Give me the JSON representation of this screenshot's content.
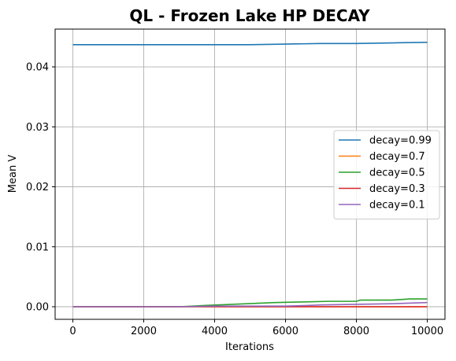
{
  "chart_data": {
    "type": "line",
    "title": "QL - Frozen Lake HP DECAY",
    "xlabel": "Iterations",
    "ylabel": "Mean V",
    "xlim": [
      -500,
      10500
    ],
    "ylim": [
      -0.0021,
      0.0463
    ],
    "xticks": [
      0,
      2000,
      4000,
      6000,
      8000,
      10000
    ],
    "yticks": [
      0.0,
      0.01,
      0.02,
      0.03,
      0.04
    ],
    "xtick_labels": [
      "0",
      "2000",
      "4000",
      "6000",
      "8000",
      "10000"
    ],
    "ytick_labels": [
      "0.00",
      "0.01",
      "0.02",
      "0.03",
      "0.04"
    ],
    "grid": true,
    "legend_position": "right",
    "series": [
      {
        "name": "decay=0.99",
        "color": "#1f77b4",
        "x": [
          0,
          1000,
          2000,
          3000,
          4000,
          5000,
          6000,
          7000,
          8000,
          9000,
          10000
        ],
        "y": [
          0.0437,
          0.0437,
          0.0437,
          0.0437,
          0.0437,
          0.0437,
          0.0438,
          0.0439,
          0.0439,
          0.044,
          0.0441
        ]
      },
      {
        "name": "decay=0.7",
        "color": "#ff7f0e",
        "x": [
          0,
          2000,
          4000,
          6000,
          8000,
          10000
        ],
        "y": [
          0.0,
          0.0,
          0.0,
          0.0,
          0.0,
          0.0
        ]
      },
      {
        "name": "decay=0.5",
        "color": "#2ca02c",
        "x": [
          0,
          3000,
          3700,
          4500,
          5700,
          6500,
          7200,
          8000,
          8100,
          9000,
          9500,
          10000
        ],
        "y": [
          0.0,
          0.0,
          0.0002,
          0.0004,
          0.0007,
          0.0008,
          0.0009,
          0.0009,
          0.0011,
          0.0011,
          0.0013,
          0.0013
        ]
      },
      {
        "name": "decay=0.3",
        "color": "#d62728",
        "x": [
          0,
          2000,
          4000,
          6000,
          8000,
          10000
        ],
        "y": [
          0.0,
          0.0,
          0.0,
          0.0,
          0.0,
          0.0
        ]
      },
      {
        "name": "decay=0.1",
        "color": "#9467bd",
        "x": [
          0,
          3000,
          4000,
          5000,
          6000,
          6600,
          7000,
          8000,
          9000,
          10000
        ],
        "y": [
          0.0,
          0.0,
          0.0001,
          0.0001,
          0.0001,
          0.0002,
          0.0003,
          0.0004,
          0.0005,
          0.0007
        ]
      }
    ]
  }
}
